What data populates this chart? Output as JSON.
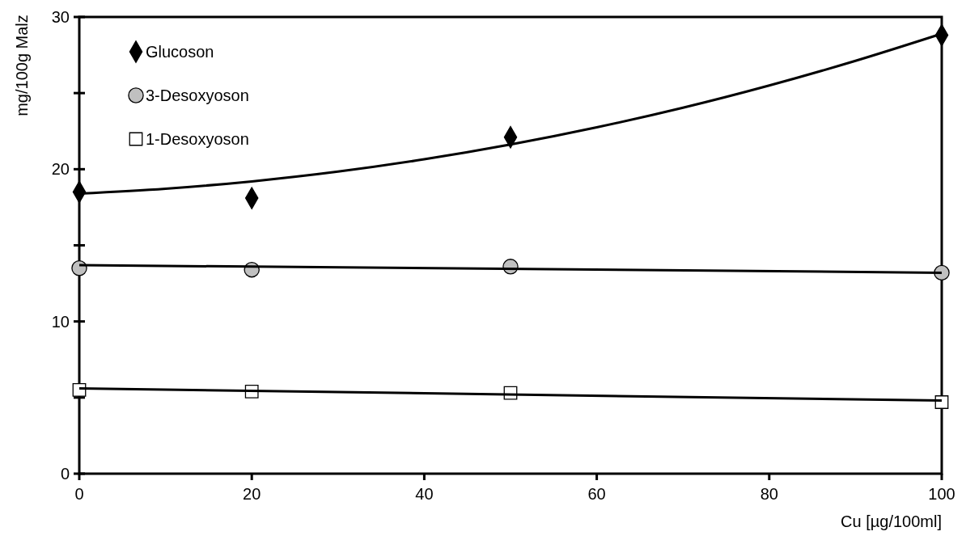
{
  "chart_data": {
    "type": "scatter",
    "xlabel": "Cu [µg/100ml]",
    "ylabel": "mg/100g Malz",
    "x": [
      0,
      20,
      50,
      100
    ],
    "xlim": [
      0,
      100
    ],
    "xticks": [
      0,
      20,
      40,
      60,
      80,
      100
    ],
    "ylim": [
      0,
      30
    ],
    "yticks": [
      0,
      {
        "value": 5,
        "label": null
      },
      10,
      {
        "value": 15,
        "label": null
      },
      20,
      {
        "value": 25,
        "label": null
      },
      30
    ],
    "grid": false,
    "legend": "top left",
    "series": [
      {
        "name": "Glucoson",
        "color": "#000000",
        "marker": "diamond",
        "values": [
          18.5,
          18.1,
          22.1,
          28.8
        ]
      },
      {
        "name": "3-Desoxyoson",
        "color": "#c0c0c0",
        "marker": "circle",
        "values": [
          13.5,
          13.4,
          13.6,
          13.2
        ]
      },
      {
        "name": "1-Desoxyoson",
        "color": "#ffffff",
        "marker": "square",
        "values": [
          5.5,
          5.4,
          5.3,
          4.7
        ]
      },
      {
        "type": "line",
        "color": "#000000",
        "x": [
          0,
          10,
          20,
          30,
          40,
          50,
          60,
          70,
          80,
          90,
          100
        ],
        "values": [
          18.4,
          18.72,
          19.2,
          19.84,
          20.65,
          21.62,
          22.75,
          24.04,
          25.5,
          27.12,
          28.9
        ]
      },
      {
        "type": "line",
        "color": "#000000",
        "x": [
          0,
          100
        ],
        "values": [
          13.7,
          13.2
        ]
      },
      {
        "type": "line",
        "color": "#000000",
        "x": [
          0,
          100
        ],
        "values": [
          5.6,
          4.8
        ]
      }
    ]
  }
}
